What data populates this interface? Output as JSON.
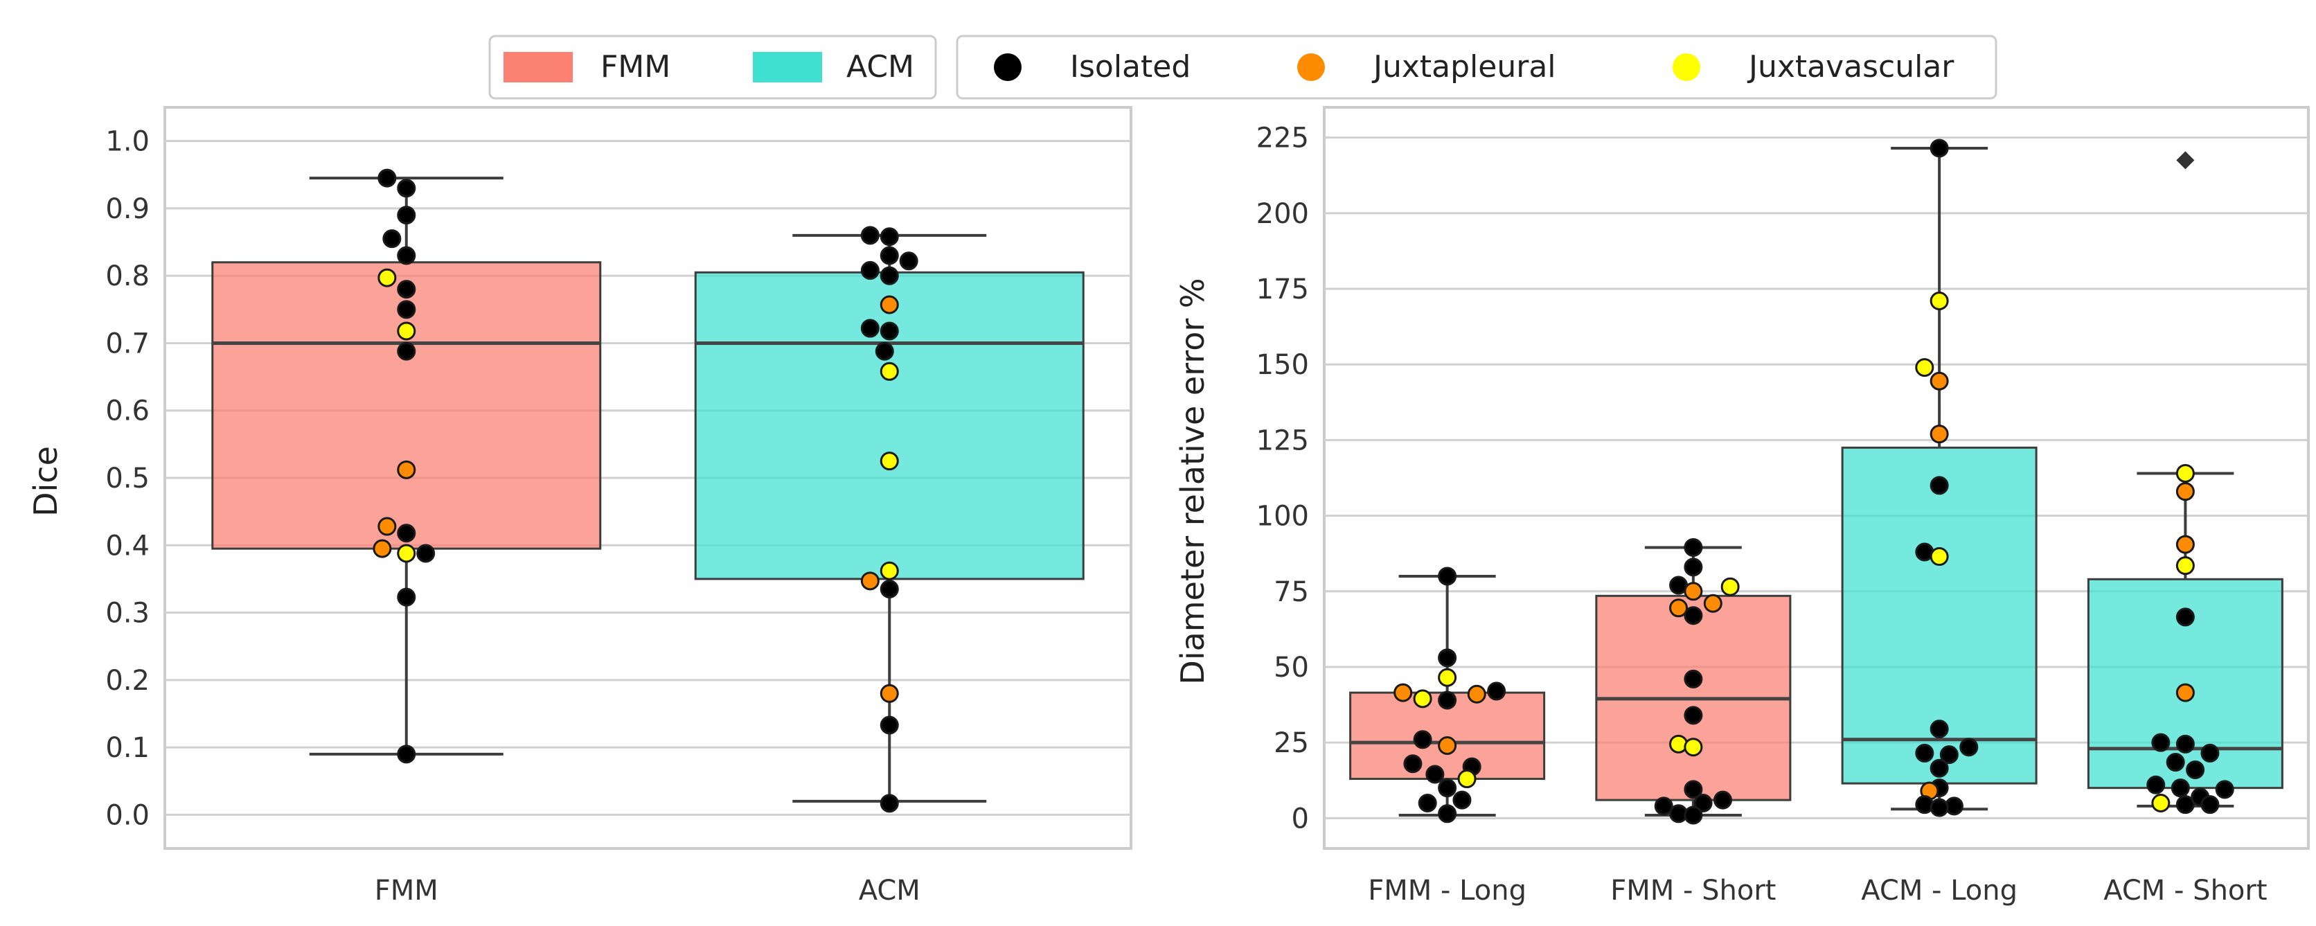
{
  "colors": {
    "fmm": "#FA8072",
    "acm": "#40E0D0",
    "isolated": "#000000",
    "juxtapleural": "#FF8C00",
    "juxtavascular": "#FFFF00",
    "grid": "#d0d0d0",
    "frame": "#cccccc",
    "median": "#444444"
  },
  "legend": {
    "box_items": [
      {
        "label": "FMM",
        "color": "#FA8072"
      },
      {
        "label": "ACM",
        "color": "#40E0D0"
      }
    ],
    "point_items": [
      {
        "label": "Isolated",
        "color": "#000000"
      },
      {
        "label": "Juxtapleural",
        "color": "#FF8C00"
      },
      {
        "label": "Juxtavascular",
        "color": "#FFFF00"
      }
    ]
  },
  "chart_data": [
    {
      "type": "box",
      "title": "",
      "xlabel": "",
      "ylabel": "Dice",
      "ylim": [
        -0.05,
        1.05
      ],
      "yticks": [
        0.0,
        0.1,
        0.2,
        0.3,
        0.4,
        0.5,
        0.6,
        0.7,
        0.8,
        0.9,
        1.0
      ],
      "ytick_labels": [
        "0.0",
        "0.1",
        "0.2",
        "0.3",
        "0.4",
        "0.5",
        "0.6",
        "0.7",
        "0.8",
        "0.9",
        "1.0"
      ],
      "categories": [
        "FMM",
        "ACM"
      ],
      "boxes": [
        {
          "category": "FMM",
          "q1": 0.395,
          "median": 0.7,
          "q3": 0.82,
          "whisker_low": 0.09,
          "whisker_high": 0.945,
          "color": "#FA8072",
          "points": [
            {
              "y": 0.945,
              "type": "Isolated",
              "dx": -0.04
            },
            {
              "y": 0.93,
              "type": "Isolated",
              "dx": 0.0
            },
            {
              "y": 0.89,
              "type": "Isolated",
              "dx": 0.0
            },
            {
              "y": 0.855,
              "type": "Isolated",
              "dx": -0.03
            },
            {
              "y": 0.83,
              "type": "Isolated",
              "dx": 0.0
            },
            {
              "y": 0.797,
              "type": "Juxtavascular",
              "dx": -0.04
            },
            {
              "y": 0.78,
              "type": "Isolated",
              "dx": 0.0
            },
            {
              "y": 0.75,
              "type": "Isolated",
              "dx": 0.0
            },
            {
              "y": 0.718,
              "type": "Juxtavascular",
              "dx": 0.0
            },
            {
              "y": 0.688,
              "type": "Isolated",
              "dx": 0.0
            },
            {
              "y": 0.512,
              "type": "Juxtapleural",
              "dx": 0.0
            },
            {
              "y": 0.428,
              "type": "Juxtapleural",
              "dx": -0.04
            },
            {
              "y": 0.418,
              "type": "Isolated",
              "dx": 0.0
            },
            {
              "y": 0.395,
              "type": "Juxtapleural",
              "dx": -0.05
            },
            {
              "y": 0.388,
              "type": "Juxtavascular",
              "dx": 0.0
            },
            {
              "y": 0.388,
              "type": "Isolated",
              "dx": 0.04
            },
            {
              "y": 0.323,
              "type": "Isolated",
              "dx": 0.0
            },
            {
              "y": 0.09,
              "type": "Isolated",
              "dx": 0.0
            }
          ]
        },
        {
          "category": "ACM",
          "q1": 0.35,
          "median": 0.7,
          "q3": 0.805,
          "whisker_low": 0.02,
          "whisker_high": 0.86,
          "color": "#40E0D0",
          "points": [
            {
              "y": 0.86,
              "type": "Isolated",
              "dx": -0.04
            },
            {
              "y": 0.858,
              "type": "Isolated",
              "dx": 0.0
            },
            {
              "y": 0.83,
              "type": "Isolated",
              "dx": 0.0
            },
            {
              "y": 0.822,
              "type": "Isolated",
              "dx": 0.04
            },
            {
              "y": 0.808,
              "type": "Isolated",
              "dx": -0.04
            },
            {
              "y": 0.8,
              "type": "Isolated",
              "dx": 0.0
            },
            {
              "y": 0.757,
              "type": "Juxtapleural",
              "dx": 0.0
            },
            {
              "y": 0.722,
              "type": "Isolated",
              "dx": -0.04
            },
            {
              "y": 0.718,
              "type": "Isolated",
              "dx": 0.0
            },
            {
              "y": 0.688,
              "type": "Isolated",
              "dx": -0.01
            },
            {
              "y": 0.658,
              "type": "Juxtavascular",
              "dx": 0.0
            },
            {
              "y": 0.525,
              "type": "Juxtavascular",
              "dx": 0.0
            },
            {
              "y": 0.362,
              "type": "Juxtavascular",
              "dx": 0.0
            },
            {
              "y": 0.347,
              "type": "Juxtapleural",
              "dx": -0.04
            },
            {
              "y": 0.335,
              "type": "Isolated",
              "dx": 0.0
            },
            {
              "y": 0.18,
              "type": "Juxtapleural",
              "dx": 0.0
            },
            {
              "y": 0.133,
              "type": "Isolated",
              "dx": 0.0
            },
            {
              "y": 0.017,
              "type": "Isolated",
              "dx": 0.0
            }
          ]
        }
      ]
    },
    {
      "type": "box",
      "title": "",
      "xlabel": "",
      "ylabel": "Diameter relative error %",
      "ylim": [
        -10,
        235
      ],
      "yticks": [
        0,
        25,
        50,
        75,
        100,
        125,
        150,
        175,
        200,
        225
      ],
      "ytick_labels": [
        "0",
        "25",
        "50",
        "75",
        "100",
        "125",
        "150",
        "175",
        "200",
        "225"
      ],
      "categories": [
        "FMM - Long",
        "FMM - Short",
        "ACM - Long",
        "ACM - Short"
      ],
      "boxes": [
        {
          "category": "FMM - Long",
          "q1": 13,
          "median": 25,
          "q3": 41.5,
          "whisker_low": 1,
          "whisker_high": 80,
          "color": "#FA8072",
          "points": [
            {
              "y": 80,
              "type": "Isolated",
              "dx": 0.0
            },
            {
              "y": 53,
              "type": "Isolated",
              "dx": 0.0
            },
            {
              "y": 46.5,
              "type": "Juxtavascular",
              "dx": 0.0
            },
            {
              "y": 42,
              "type": "Isolated",
              "dx": 0.2
            },
            {
              "y": 41.5,
              "type": "Juxtapleural",
              "dx": -0.18
            },
            {
              "y": 41,
              "type": "Juxtapleural",
              "dx": 0.12
            },
            {
              "y": 39.5,
              "type": "Juxtavascular",
              "dx": -0.1
            },
            {
              "y": 39,
              "type": "Isolated",
              "dx": 0.0
            },
            {
              "y": 26,
              "type": "Isolated",
              "dx": -0.1
            },
            {
              "y": 24,
              "type": "Juxtapleural",
              "dx": 0.0
            },
            {
              "y": 18,
              "type": "Isolated",
              "dx": -0.14
            },
            {
              "y": 17,
              "type": "Isolated",
              "dx": 0.1
            },
            {
              "y": 14.5,
              "type": "Isolated",
              "dx": -0.05
            },
            {
              "y": 13,
              "type": "Juxtavascular",
              "dx": 0.08
            },
            {
              "y": 10,
              "type": "Isolated",
              "dx": 0.0
            },
            {
              "y": 6,
              "type": "Isolated",
              "dx": 0.06
            },
            {
              "y": 5,
              "type": "Isolated",
              "dx": -0.08
            },
            {
              "y": 1.5,
              "type": "Isolated",
              "dx": 0.0
            }
          ]
        },
        {
          "category": "FMM - Short",
          "q1": 6,
          "median": 39.5,
          "q3": 73.5,
          "whisker_low": 1,
          "whisker_high": 89.5,
          "color": "#FA8072",
          "points": [
            {
              "y": 89.5,
              "type": "Isolated",
              "dx": 0.0
            },
            {
              "y": 83,
              "type": "Isolated",
              "dx": 0.0
            },
            {
              "y": 77,
              "type": "Isolated",
              "dx": -0.06
            },
            {
              "y": 76.5,
              "type": "Juxtavascular",
              "dx": 0.15
            },
            {
              "y": 75,
              "type": "Juxtapleural",
              "dx": 0.0
            },
            {
              "y": 71,
              "type": "Juxtapleural",
              "dx": 0.08
            },
            {
              "y": 69.5,
              "type": "Juxtapleural",
              "dx": -0.06
            },
            {
              "y": 67,
              "type": "Isolated",
              "dx": 0.0
            },
            {
              "y": 46,
              "type": "Isolated",
              "dx": 0.0
            },
            {
              "y": 34,
              "type": "Isolated",
              "dx": 0.0
            },
            {
              "y": 24.5,
              "type": "Juxtavascular",
              "dx": -0.06
            },
            {
              "y": 23.5,
              "type": "Juxtavascular",
              "dx": 0.0
            },
            {
              "y": 9.5,
              "type": "Isolated",
              "dx": 0.0
            },
            {
              "y": 6,
              "type": "Isolated",
              "dx": 0.12
            },
            {
              "y": 5,
              "type": "Isolated",
              "dx": 0.04
            },
            {
              "y": 4,
              "type": "Isolated",
              "dx": -0.12
            },
            {
              "y": 1.5,
              "type": "Isolated",
              "dx": -0.06
            },
            {
              "y": 1,
              "type": "Isolated",
              "dx": 0.0
            }
          ]
        },
        {
          "category": "ACM - Long",
          "q1": 11.5,
          "median": 26,
          "q3": 122.5,
          "whisker_low": 3,
          "whisker_high": 221.5,
          "color": "#40E0D0",
          "points": [
            {
              "y": 221.5,
              "type": "Isolated",
              "dx": 0.0
            },
            {
              "y": 171,
              "type": "Juxtavascular",
              "dx": 0.0
            },
            {
              "y": 149,
              "type": "Juxtavascular",
              "dx": -0.06
            },
            {
              "y": 144.5,
              "type": "Juxtapleural",
              "dx": 0.0
            },
            {
              "y": 127,
              "type": "Juxtapleural",
              "dx": 0.0
            },
            {
              "y": 110,
              "type": "Isolated",
              "dx": 0.0
            },
            {
              "y": 88,
              "type": "Isolated",
              "dx": -0.06
            },
            {
              "y": 86.5,
              "type": "Juxtavascular",
              "dx": 0.0
            },
            {
              "y": 29.5,
              "type": "Isolated",
              "dx": 0.0
            },
            {
              "y": 23.5,
              "type": "Isolated",
              "dx": 0.12
            },
            {
              "y": 21.5,
              "type": "Isolated",
              "dx": -0.06
            },
            {
              "y": 21,
              "type": "Isolated",
              "dx": 0.04
            },
            {
              "y": 16.5,
              "type": "Isolated",
              "dx": 0.0
            },
            {
              "y": 10,
              "type": "Isolated",
              "dx": 0.0
            },
            {
              "y": 9,
              "type": "Juxtapleural",
              "dx": -0.04
            },
            {
              "y": 4.5,
              "type": "Isolated",
              "dx": -0.06
            },
            {
              "y": 4,
              "type": "Isolated",
              "dx": 0.06
            },
            {
              "y": 3.5,
              "type": "Isolated",
              "dx": 0.0
            }
          ]
        },
        {
          "category": "ACM - Short",
          "q1": 10,
          "median": 23,
          "q3": 79,
          "whisker_low": 4,
          "whisker_high": 114,
          "color": "#40E0D0",
          "outliers": [
            217.5
          ],
          "points": [
            {
              "y": 114,
              "type": "Juxtavascular",
              "dx": 0.0
            },
            {
              "y": 108,
              "type": "Juxtapleural",
              "dx": 0.0
            },
            {
              "y": 90.5,
              "type": "Juxtapleural",
              "dx": 0.0
            },
            {
              "y": 83.5,
              "type": "Juxtavascular",
              "dx": 0.0
            },
            {
              "y": 66.5,
              "type": "Isolated",
              "dx": 0.0
            },
            {
              "y": 41.5,
              "type": "Juxtapleural",
              "dx": 0.0
            },
            {
              "y": 25,
              "type": "Isolated",
              "dx": -0.1
            },
            {
              "y": 24.5,
              "type": "Isolated",
              "dx": 0.0
            },
            {
              "y": 21.5,
              "type": "Isolated",
              "dx": 0.1
            },
            {
              "y": 18.5,
              "type": "Isolated",
              "dx": -0.04
            },
            {
              "y": 16,
              "type": "Isolated",
              "dx": 0.04
            },
            {
              "y": 11,
              "type": "Isolated",
              "dx": -0.12
            },
            {
              "y": 10,
              "type": "Isolated",
              "dx": -0.02
            },
            {
              "y": 9.5,
              "type": "Isolated",
              "dx": 0.16
            },
            {
              "y": 7,
              "type": "Isolated",
              "dx": 0.06
            },
            {
              "y": 5,
              "type": "Juxtavascular",
              "dx": -0.1
            },
            {
              "y": 4.5,
              "type": "Isolated",
              "dx": 0.0
            },
            {
              "y": 4.5,
              "type": "Isolated",
              "dx": 0.1
            }
          ]
        }
      ]
    }
  ]
}
